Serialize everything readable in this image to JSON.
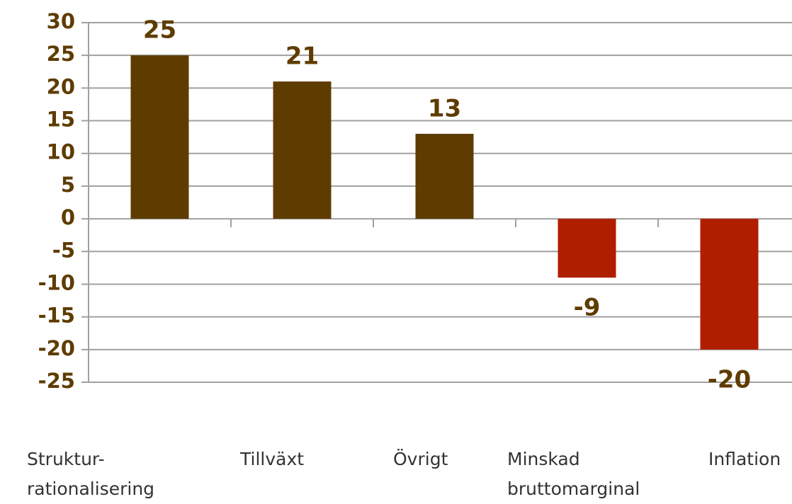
{
  "chart_data": {
    "type": "bar",
    "categories": [
      "Struktur-\nrationalisering",
      "Tillväxt",
      "Övrigt",
      "Minskad\nbruttomarginal",
      "Inflation"
    ],
    "values": [
      25,
      21,
      13,
      -9,
      -20
    ],
    "colors": [
      "#5e3c00",
      "#5e3c00",
      "#5e3c00",
      "#b01e00",
      "#b01e00"
    ],
    "ylim": [
      -25,
      30
    ],
    "yticks": [
      -25,
      -20,
      -15,
      -10,
      -5,
      0,
      5,
      10,
      15,
      20,
      25,
      30
    ],
    "grid": true
  }
}
